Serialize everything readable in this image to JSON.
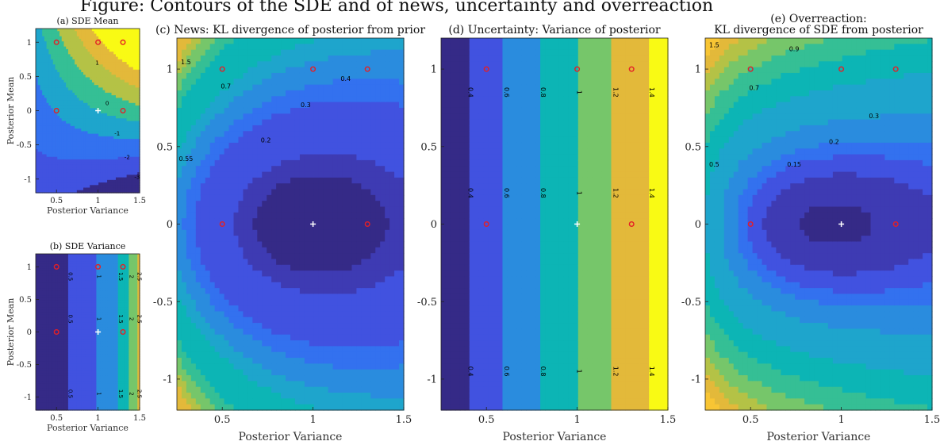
{
  "header_title": "Figure: Contours of the SDE and of news, uncertainty and overreaction",
  "colors": {
    "parula": [
      "#352a87",
      "#3e3bb3",
      "#4152e0",
      "#3371ef",
      "#2a8cde",
      "#1ea5cc",
      "#0cb5b5",
      "#35bf95",
      "#76c66a",
      "#b4c246",
      "#e3b93a",
      "#f8c534",
      "#f9fa14"
    ],
    "point_red": "#e41f26",
    "point_white": "#ffffff",
    "contour_line": "#000000"
  },
  "chart_data": [
    {
      "id": "a",
      "type": "heatmap",
      "title": "(a) SDE Mean",
      "xlabel": "Posterior Variance",
      "ylabel": "Posterior Mean",
      "xlim": [
        0.25,
        1.5
      ],
      "ylim": [
        -1.2,
        1.2
      ],
      "xticks": [
        "0.5",
        "1",
        "1.5"
      ],
      "yticks": [
        "1",
        "0.5",
        "0",
        "-0.5",
        "-1"
      ],
      "contour_levels": [
        -3,
        -2,
        -1,
        0,
        1,
        2,
        3
      ],
      "contour_labels": [
        "3",
        "2",
        "1",
        "0",
        "-1",
        "-2",
        "-3"
      ],
      "red_points": [
        [
          0.5,
          1
        ],
        [
          1,
          1
        ],
        [
          1.3,
          1
        ],
        [
          0.5,
          0
        ],
        [
          1.3,
          0
        ]
      ],
      "white_point": [
        1,
        0
      ]
    },
    {
      "id": "b",
      "type": "heatmap",
      "title": "(b) SDE Variance",
      "xlabel": "Posterior Variance",
      "ylabel": "Posterior Mean",
      "xlim": [
        0.25,
        1.5
      ],
      "ylim": [
        -1.2,
        1.2
      ],
      "xticks": [
        "0.5",
        "1",
        "1.5"
      ],
      "yticks": [
        "1",
        "0.5",
        "0",
        "-0.5",
        "-1"
      ],
      "contour_levels": [
        0.5,
        1,
        1.5,
        2,
        2.5,
        3
      ],
      "contour_labels": [
        "0.5",
        "1",
        "1.5",
        "2",
        "2.5",
        "3"
      ],
      "red_points": [
        [
          0.5,
          1
        ],
        [
          1,
          1
        ],
        [
          1.3,
          1
        ],
        [
          0.5,
          0
        ],
        [
          1.3,
          0
        ]
      ],
      "white_point": [
        1,
        0
      ]
    },
    {
      "id": "c",
      "type": "heatmap",
      "title": "(c) News: KL divergence of posterior from prior",
      "xlabel": "Posterior Variance",
      "ylabel": "",
      "xlim": [
        0.25,
        1.5
      ],
      "ylim": [
        -1.2,
        1.2
      ],
      "xticks": [
        "0.5",
        "1",
        "1.5"
      ],
      "yticks": [
        "1",
        "0.5",
        "0",
        "-0.5",
        "-1"
      ],
      "contour_levels": [
        0.05,
        0.1,
        0.2,
        0.3,
        0.4,
        0.55,
        0.7,
        0.9,
        1.1,
        1.3,
        1.5,
        1.7,
        1.9,
        2.1,
        2.3
      ],
      "contour_labels": [
        "0.05",
        "0.1",
        "0.2",
        "0.3",
        "0.4",
        "0.55",
        "0.7",
        "0.9",
        "1.1",
        "1.3",
        "1.5"
      ],
      "red_points": [
        [
          0.5,
          1
        ],
        [
          1,
          1
        ],
        [
          1.3,
          1
        ],
        [
          0.5,
          0
        ],
        [
          1.3,
          0
        ]
      ],
      "white_point": [
        1,
        0
      ]
    },
    {
      "id": "d",
      "type": "heatmap",
      "title": "(d) Uncertainty: Variance of posterior",
      "xlabel": "Posterior Variance",
      "ylabel": "",
      "xlim": [
        0.25,
        1.5
      ],
      "ylim": [
        -1.2,
        1.2
      ],
      "xticks": [
        "0.5",
        "1",
        "1.5"
      ],
      "yticks": [
        "1",
        "0.5",
        "0",
        "-0.5",
        "-1"
      ],
      "contour_levels": [
        0.4,
        0.6,
        0.8,
        1,
        1.2,
        1.4
      ],
      "contour_labels": [
        "0.4",
        "0.6",
        "0.8",
        "1",
        "1.2",
        "1.4"
      ],
      "red_points": [
        [
          0.5,
          1
        ],
        [
          1,
          1
        ],
        [
          1.3,
          1
        ],
        [
          0.5,
          0
        ],
        [
          1.3,
          0
        ]
      ],
      "white_point": [
        1,
        0
      ]
    },
    {
      "id": "e",
      "type": "heatmap",
      "title": "(e) Overreaction:",
      "title_line2": "KL divergence of SDE from posterior",
      "xlabel": "Posterior Variance",
      "ylabel": "",
      "xlim": [
        0.25,
        1.5
      ],
      "ylim": [
        -1.2,
        1.2
      ],
      "xticks": [
        "0.5",
        "1",
        "1.5"
      ],
      "yticks": [
        "1",
        "0.5",
        "0",
        "-0.5",
        "-1"
      ],
      "contour_levels": [
        0.05,
        0.1,
        0.15,
        0.2,
        0.3,
        0.5,
        0.7,
        0.9,
        1.1,
        1.3,
        1.5,
        1.7
      ],
      "contour_labels": [
        "0.05",
        "0.1",
        "0.15",
        "0.2",
        "0.3",
        "0.5",
        "0.7",
        "0.9",
        "1.1",
        "1.3",
        "1.5",
        "1.7"
      ],
      "red_points": [
        [
          0.5,
          1
        ],
        [
          1,
          1
        ],
        [
          1.3,
          1
        ],
        [
          0.5,
          0
        ],
        [
          1.3,
          0
        ]
      ],
      "white_point": [
        1,
        0
      ]
    }
  ]
}
